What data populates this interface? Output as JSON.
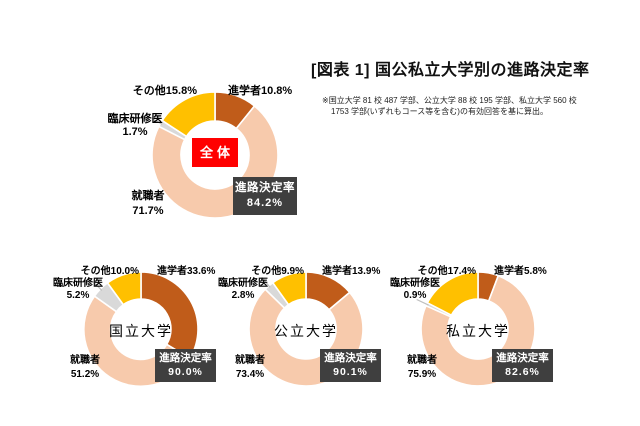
{
  "chart_data": {
    "type": "donut",
    "title": "[図表 1] 国公私立大学別の進路決定率",
    "notes": [
      "※国立大学 81 校 487 学部、公立大学 88 校 195 学部、私立大学 560 校",
      "1753 学部(いずれもコース等を含む)の有効回答を基に算出。"
    ],
    "unit": "%",
    "start_angle": "top",
    "direction": "clockwise",
    "rate_box_title": "進路決定率",
    "segment_colors": {
      "進学者": "#C05C1A",
      "就職者": "#F7CAAC",
      "臨床研修医": "#D9D9D9",
      "その他": "#FFC000"
    },
    "charts": [
      {
        "center_label": "全体",
        "center_style": "red-box",
        "rate_value": "84.2%",
        "segments": [
          {
            "name": "進学者",
            "value": 10.8
          },
          {
            "name": "就職者",
            "value": 71.7
          },
          {
            "name": "臨床研修医",
            "value": 1.7
          },
          {
            "name": "その他",
            "value": 15.8
          }
        ],
        "labels": {
          "advance": "進学者10.8%",
          "other": "その他15.8%",
          "resident_name": "臨床研修医",
          "resident_value": "1.7%",
          "employed_name": "就職者",
          "employed_value": "71.7%"
        }
      },
      {
        "center_label": "国立大学",
        "center_style": "plain",
        "rate_value": "90.0%",
        "segments": [
          {
            "name": "進学者",
            "value": 33.6
          },
          {
            "name": "就職者",
            "value": 51.2
          },
          {
            "name": "臨床研修医",
            "value": 5.2
          },
          {
            "name": "その他",
            "value": 10.0
          }
        ],
        "labels": {
          "advance": "進学者33.6%",
          "other": "その他10.0%",
          "resident_name": "臨床研修医",
          "resident_value": "5.2%",
          "employed_name": "就職者",
          "employed_value": "51.2%"
        }
      },
      {
        "center_label": "公立大学",
        "center_style": "plain",
        "rate_value": "90.1%",
        "segments": [
          {
            "name": "進学者",
            "value": 13.9
          },
          {
            "name": "就職者",
            "value": 73.4
          },
          {
            "name": "臨床研修医",
            "value": 2.8
          },
          {
            "name": "その他",
            "value": 9.9
          }
        ],
        "labels": {
          "advance": "進学者13.9%",
          "other": "その他9.9%",
          "resident_name": "臨床研修医",
          "resident_value": "2.8%",
          "employed_name": "就職者",
          "employed_value": "73.4%"
        }
      },
      {
        "center_label": "私立大学",
        "center_style": "plain",
        "rate_value": "82.6%",
        "segments": [
          {
            "name": "進学者",
            "value": 5.8
          },
          {
            "name": "就職者",
            "value": 75.9
          },
          {
            "name": "臨床研修医",
            "value": 0.9
          },
          {
            "name": "その他",
            "value": 17.4
          }
        ],
        "labels": {
          "advance": "進学者5.8%",
          "other": "その他17.4%",
          "resident_name": "臨床研修医",
          "resident_value": "0.9%",
          "employed_name": "就職者",
          "employed_value": "75.9%"
        }
      }
    ]
  },
  "colors": {
    "rate_box_bg": "#3F3F3F",
    "rate_box_text": "#FFFFFF",
    "overall_center_bg": "#FF0000",
    "overall_center_text": "#FFFFFF",
    "leader_line": "#BFBFBF"
  }
}
